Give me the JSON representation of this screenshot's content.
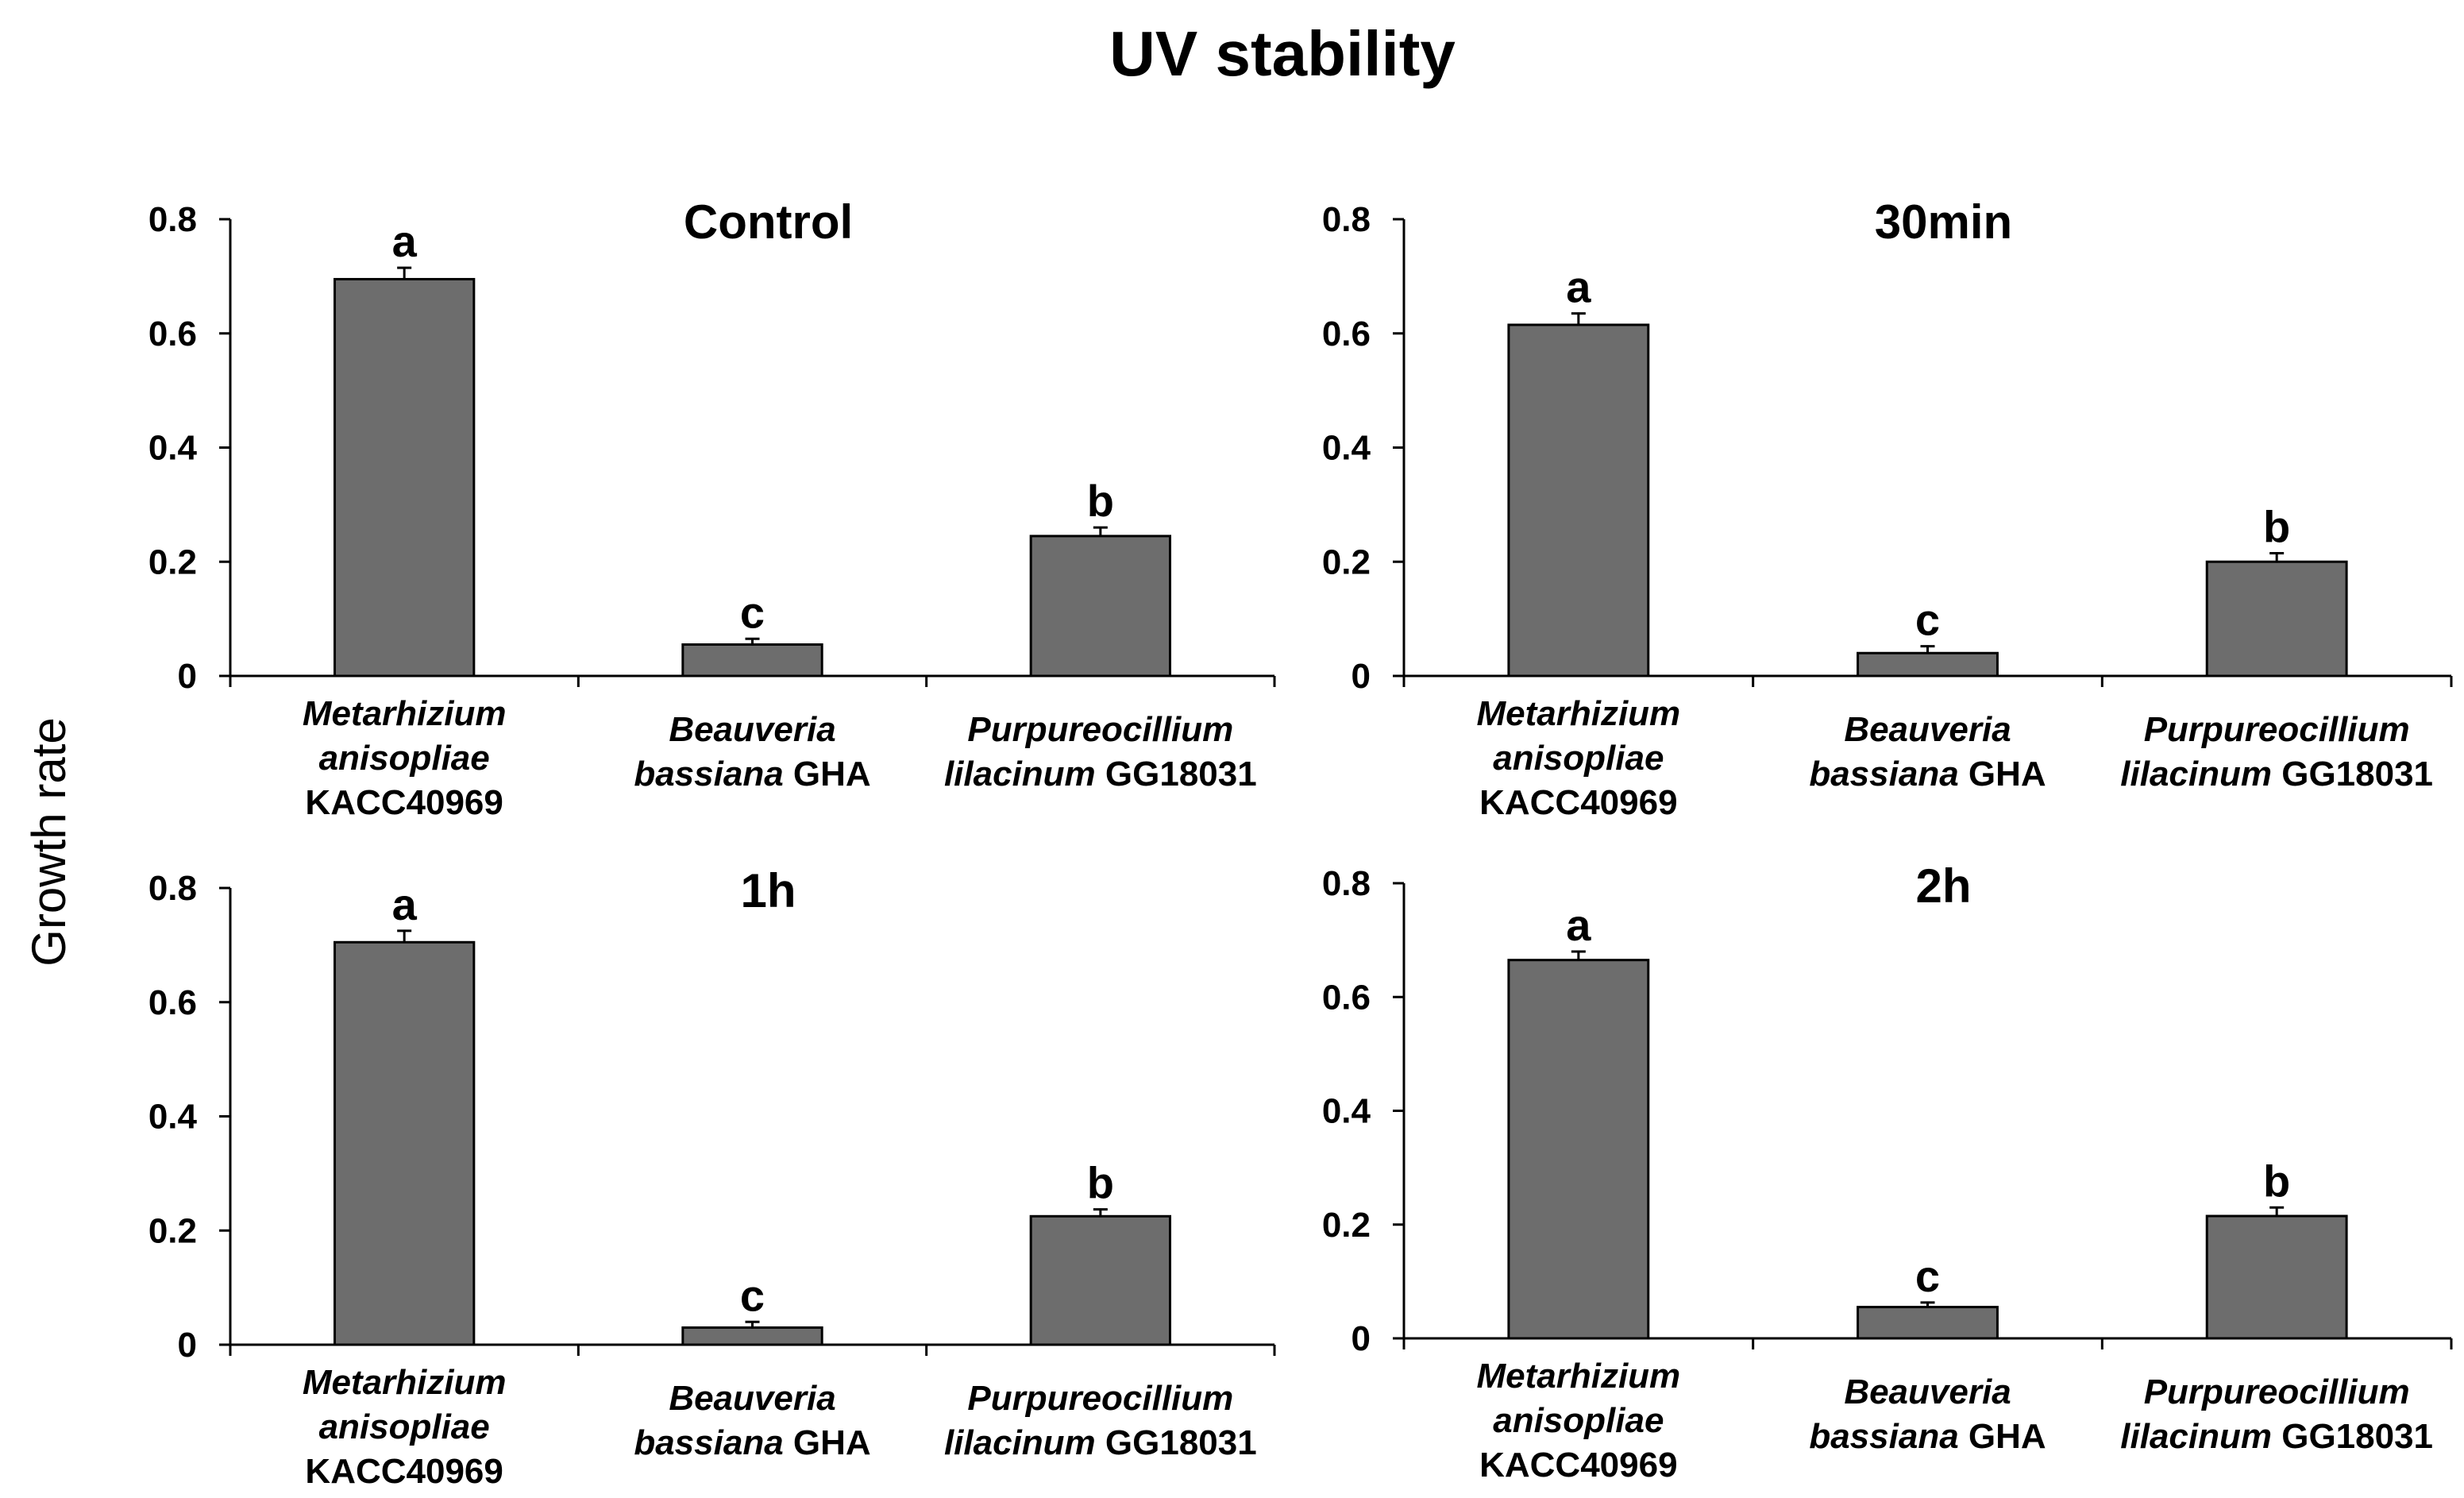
{
  "figure_title": "UV stability",
  "y_axis_label": "Growth rate",
  "chart_data": [
    {
      "type": "bar",
      "title": "Control",
      "categories": [
        {
          "line1_italic": "Metarhizium",
          "line2_italic": "anisopliae",
          "line2_plain": "",
          "line3": "KACC40969"
        },
        {
          "line1_italic": "Beauveria",
          "line2_italic": "bassiana",
          "line2_plain": " GHA",
          "line3": ""
        },
        {
          "line1_italic": "Purpureocillium",
          "line2_italic": "lilacinum",
          "line2_plain": " GG18031",
          "line3": ""
        }
      ],
      "values": [
        0.695,
        0.055,
        0.245
      ],
      "errors": [
        0.02,
        0.01,
        0.015
      ],
      "letters": [
        "a",
        "c",
        "b"
      ],
      "ylim": [
        0,
        0.8
      ],
      "yticks": [
        "0",
        "0.2",
        "0.4",
        "0.6",
        "0.8"
      ],
      "ytick_values": [
        0,
        0.2,
        0.4,
        0.6,
        0.8
      ]
    },
    {
      "type": "bar",
      "title": "30min",
      "categories": [
        {
          "line1_italic": "Metarhizium",
          "line2_italic": "anisopliae",
          "line2_plain": "",
          "line3": "KACC40969"
        },
        {
          "line1_italic": "Beauveria",
          "line2_italic": "bassiana",
          "line2_plain": " GHA",
          "line3": ""
        },
        {
          "line1_italic": "Purpureocillium",
          "line2_italic": "lilacinum",
          "line2_plain": " GG18031",
          "line3": ""
        }
      ],
      "values": [
        0.615,
        0.04,
        0.2
      ],
      "errors": [
        0.02,
        0.012,
        0.015
      ],
      "letters": [
        "a",
        "c",
        "b"
      ],
      "ylim": [
        0,
        0.8
      ],
      "yticks": [
        "0",
        "0.2",
        "0.4",
        "0.6",
        "0.8"
      ],
      "ytick_values": [
        0,
        0.2,
        0.4,
        0.6,
        0.8
      ]
    },
    {
      "type": "bar",
      "title": "1h",
      "categories": [
        {
          "line1_italic": "Metarhizium",
          "line2_italic": "anisopliae",
          "line2_plain": "",
          "line3": "KACC40969"
        },
        {
          "line1_italic": "Beauveria",
          "line2_italic": "bassiana",
          "line2_plain": " GHA",
          "line3": ""
        },
        {
          "line1_italic": "Purpureocillium",
          "line2_italic": "lilacinum",
          "line2_plain": " GG18031",
          "line3": ""
        }
      ],
      "values": [
        0.705,
        0.03,
        0.225
      ],
      "errors": [
        0.02,
        0.01,
        0.012
      ],
      "letters": [
        "a",
        "c",
        "b"
      ],
      "ylim": [
        0,
        0.8
      ],
      "yticks": [
        "0",
        "0.2",
        "0.4",
        "0.6",
        "0.8"
      ],
      "ytick_values": [
        0,
        0.2,
        0.4,
        0.6,
        0.8
      ]
    },
    {
      "type": "bar",
      "title": "2h",
      "categories": [
        {
          "line1_italic": "Metarhizium",
          "line2_italic": "anisopliae",
          "line2_plain": "",
          "line3": "KACC40969"
        },
        {
          "line1_italic": "Beauveria",
          "line2_italic": "bassiana",
          "line2_plain": " GHA",
          "line3": ""
        },
        {
          "line1_italic": "Purpureocillium",
          "line2_italic": "lilacinum",
          "line2_plain": " GG18031",
          "line3": ""
        }
      ],
      "values": [
        0.665,
        0.055,
        0.215
      ],
      "errors": [
        0.015,
        0.008,
        0.015
      ],
      "letters": [
        "a",
        "c",
        "b"
      ],
      "ylim": [
        0,
        0.8
      ],
      "yticks": [
        "0",
        "0.2",
        "0.4",
        "0.6",
        "0.8"
      ],
      "ytick_values": [
        0,
        0.2,
        0.4,
        0.6,
        0.8
      ]
    }
  ]
}
